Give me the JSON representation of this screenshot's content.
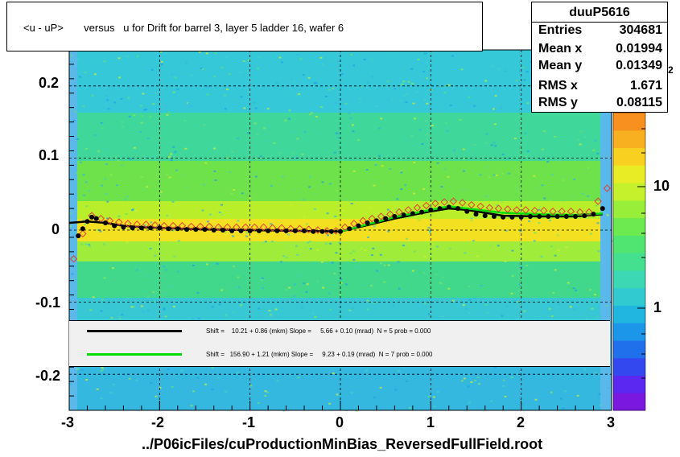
{
  "title": "<u - uP>       versus   u for Drift for barrel 3, layer 5 ladder 16, wafer 6",
  "stats": {
    "name": "duuP5616",
    "rows": [
      {
        "label": "Entries",
        "value": "304681"
      },
      {
        "label": "Mean x",
        "value": "0.01994"
      },
      {
        "label": "Mean y",
        "value": "0.01349"
      },
      {
        "label": "RMS x",
        "value": "1.671"
      },
      {
        "label": "RMS y",
        "value": "0.08115"
      }
    ]
  },
  "legend": [
    {
      "text": "Shift =    10.21 + 0.86 (mkm) Slope =     5.66 + 0.10 (mrad)  N = 5 prob = 0.000",
      "color": "#000000"
    },
    {
      "text": "Shift =   156.90 + 1.21 (mkm) Slope =     9.23 + 0.19 (mrad)  N = 7 prob = 0.000",
      "color": "#00dd00"
    }
  ],
  "footer": "../P06icFiles/cuProductionMinBias_ReversedFullField.root",
  "colorbar": {
    "labels": [
      "10",
      "1"
    ],
    "exponent": "2"
  },
  "chart_data": {
    "type": "heatmap",
    "title": "<u - uP>       versus   u for Drift for barrel 3, layer 5 ladder 16, wafer 6",
    "xlim": [
      -3,
      3
    ],
    "ylim": [
      -0.25,
      0.25
    ],
    "x_ticks": [
      "-3",
      "-2",
      "-1",
      "0",
      "1",
      "2",
      "3"
    ],
    "y_ticks": [
      "-0.2",
      "-0.1",
      "0",
      "0.1",
      "0.2"
    ],
    "grid": true,
    "colorbar_scale": "log",
    "series": [
      {
        "marker": "black-filled-circle",
        "x": [
          -2.9,
          -2.85,
          -2.8,
          -2.75,
          -2.7,
          -2.6,
          -2.5,
          -2.4,
          -2.3,
          -2.2,
          -2.1,
          -2.0,
          -1.9,
          -1.8,
          -1.7,
          -1.6,
          -1.5,
          -1.4,
          -1.3,
          -1.2,
          -1.1,
          -1.0,
          -0.9,
          -0.8,
          -0.7,
          -0.6,
          -0.5,
          -0.4,
          -0.3,
          -0.2,
          -0.1,
          0.0,
          0.1,
          0.2,
          0.3,
          0.4,
          0.5,
          0.6,
          0.7,
          0.8,
          0.9,
          1.0,
          1.1,
          1.2,
          1.3,
          1.4,
          1.5,
          1.6,
          1.7,
          1.8,
          1.9,
          2.0,
          2.1,
          2.2,
          2.3,
          2.4,
          2.5,
          2.6,
          2.7,
          2.8,
          2.9
        ],
        "y": [
          -0.008,
          0.002,
          0.012,
          0.018,
          0.016,
          0.01,
          0.006,
          0.004,
          0.003,
          0.003,
          0.003,
          0.003,
          0.002,
          0.002,
          0.001,
          0.001,
          0.001,
          0.0,
          0.0,
          -0.001,
          -0.001,
          -0.001,
          -0.001,
          -0.001,
          -0.001,
          -0.001,
          -0.001,
          -0.001,
          -0.002,
          -0.002,
          -0.002,
          -0.002,
          0.002,
          0.006,
          0.01,
          0.013,
          0.016,
          0.019,
          0.021,
          0.023,
          0.025,
          0.028,
          0.03,
          0.032,
          0.03,
          0.026,
          0.022,
          0.02,
          0.019,
          0.018,
          0.018,
          0.018,
          0.019,
          0.019,
          0.019,
          0.019,
          0.019,
          0.019,
          0.02,
          0.022,
          0.03
        ]
      },
      {
        "marker": "red-open-diamond",
        "x": [
          -2.95,
          -2.85,
          -2.75,
          -2.65,
          -2.55,
          -2.45,
          -2.35,
          -2.25,
          -2.15,
          -2.05,
          -1.95,
          -1.85,
          -1.75,
          -1.65,
          -1.55,
          -1.45,
          -1.35,
          -1.25,
          -1.15,
          -1.05,
          -0.95,
          -0.85,
          -0.75,
          -0.65,
          -0.55,
          -0.45,
          -0.35,
          -0.25,
          -0.15,
          -0.05,
          0.05,
          0.15,
          0.25,
          0.35,
          0.45,
          0.55,
          0.65,
          0.75,
          0.85,
          0.95,
          1.05,
          1.15,
          1.25,
          1.35,
          1.45,
          1.55,
          1.65,
          1.75,
          1.85,
          1.95,
          2.05,
          2.15,
          2.25,
          2.35,
          2.45,
          2.55,
          2.65,
          2.75,
          2.85,
          2.95
        ],
        "y": [
          -0.04,
          -0.005,
          0.02,
          0.016,
          0.013,
          0.011,
          0.009,
          0.008,
          0.008,
          0.007,
          0.006,
          0.006,
          0.006,
          0.005,
          0.005,
          0.005,
          0.004,
          0.004,
          0.004,
          0.004,
          0.004,
          0.004,
          0.003,
          0.003,
          0.002,
          0.002,
          0.001,
          0.0,
          -0.001,
          -0.001,
          0.004,
          0.009,
          0.013,
          0.016,
          0.019,
          0.022,
          0.025,
          0.028,
          0.031,
          0.034,
          0.037,
          0.039,
          0.04,
          0.038,
          0.035,
          0.033,
          0.031,
          0.03,
          0.029,
          0.028,
          0.028,
          0.027,
          0.027,
          0.026,
          0.026,
          0.026,
          0.025,
          0.025,
          0.04,
          0.058
        ]
      },
      {
        "name": "Shift =    10.21 + 0.86 (mkm) Slope =     5.66 + 0.10 (mrad)  N = 5 prob = 0.000",
        "marker": "black-line",
        "x": [
          -3.0,
          -2.8,
          -2.6,
          -2.4,
          -2.2,
          -2.0,
          -1.5,
          -1.0,
          -0.5,
          0.0,
          0.3,
          0.6,
          1.0,
          1.2,
          1.4,
          1.8,
          2.2,
          2.6,
          2.9
        ],
        "y": [
          0.01,
          0.012,
          0.01,
          0.006,
          0.004,
          0.003,
          0.001,
          0.0,
          -0.001,
          -0.002,
          0.007,
          0.016,
          0.026,
          0.03,
          0.028,
          0.02,
          0.019,
          0.019,
          0.022
        ]
      },
      {
        "name": "Shift =   156.90 + 1.21 (mkm) Slope =     9.23 + 0.19 (mrad)  N = 7 prob = 0.000",
        "marker": "green-line",
        "x": [
          0.0,
          0.3,
          0.6,
          1.0,
          1.2,
          1.4,
          1.8,
          2.2,
          2.6,
          2.9
        ],
        "y": [
          -0.002,
          0.008,
          0.018,
          0.028,
          0.033,
          0.03,
          0.024,
          0.022,
          0.021,
          0.023
        ]
      }
    ]
  }
}
